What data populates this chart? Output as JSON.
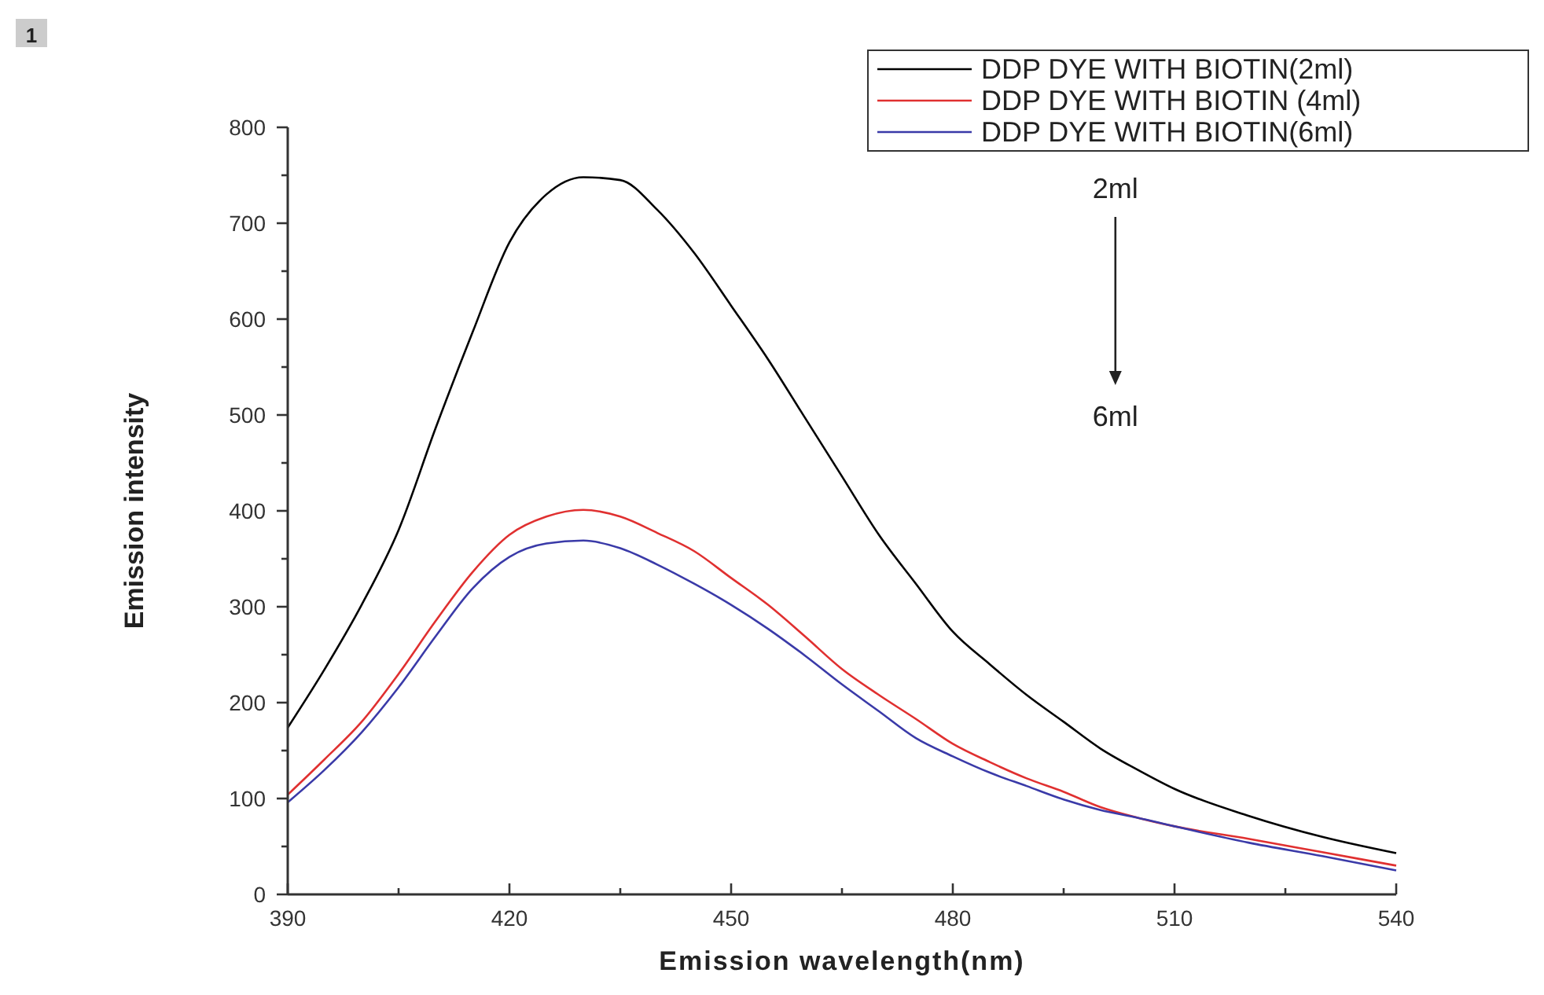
{
  "chart_data": {
    "type": "line",
    "xlabel": "Emission wavelength(nm)",
    "ylabel": "Emission intensity",
    "x": [
      390,
      395,
      400,
      405,
      410,
      415,
      420,
      425,
      430,
      435,
      440,
      445,
      450,
      455,
      460,
      465,
      470,
      475,
      480,
      485,
      490,
      495,
      500,
      505,
      510,
      520,
      530,
      540
    ],
    "series": [
      {
        "name": "DDP DYE WITH BIOTIN(2ml)",
        "color": "#000000",
        "values": [
          174,
          235,
          302,
          380,
          486,
          586,
          680,
          730,
          748,
          745,
          714,
          669,
          614,
          558,
          497,
          436,
          375,
          324,
          274,
          240,
          208,
          180,
          152,
          130,
          110,
          82,
          60,
          43
        ]
      },
      {
        "name": "DDP DYE WITH BIOTIN (4ml)",
        "color": "#e03030",
        "values": [
          104,
          141,
          180,
          230,
          285,
          336,
          375,
          394,
          401,
          394,
          377,
          358,
          330,
          302,
          269,
          235,
          208,
          183,
          157,
          138,
          121,
          107,
          91,
          80,
          71,
          58,
          44,
          30
        ]
      },
      {
        "name": "DDP DYE WITH BIOTIN(6ml)",
        "color": "#3a3aa8",
        "values": [
          96,
          130,
          169,
          216,
          269,
          319,
          352,
          366,
          369,
          361,
          344,
          324,
          302,
          277,
          249,
          219,
          191,
          163,
          144,
          127,
          113,
          99,
          88,
          80,
          71,
          54,
          40,
          25
        ]
      }
    ],
    "xlim": [
      390,
      540
    ],
    "xticks": [
      390,
      {
        "value": 405,
        "label": null
      },
      420,
      {
        "value": 435,
        "label": null
      },
      450,
      {
        "value": 465,
        "label": null
      },
      480,
      {
        "value": 495,
        "label": null
      },
      510,
      {
        "value": 525,
        "label": null
      },
      540
    ],
    "ylim": [
      0,
      800
    ],
    "yticks": [
      0,
      {
        "value": 50,
        "label": null
      },
      100,
      {
        "value": 150,
        "label": null
      },
      200,
      {
        "value": 250,
        "label": null
      },
      300,
      {
        "value": 350,
        "label": null
      },
      400,
      {
        "value": 450,
        "label": null
      },
      500,
      {
        "value": 550,
        "label": null
      },
      600,
      {
        "value": 650,
        "label": null
      },
      700,
      {
        "value": 750,
        "label": null
      },
      800
    ],
    "legend": "top right",
    "grid": false,
    "marker": "none",
    "line_style": "solid",
    "annotations": [
      "1",
      "2ml",
      "6ml"
    ]
  }
}
